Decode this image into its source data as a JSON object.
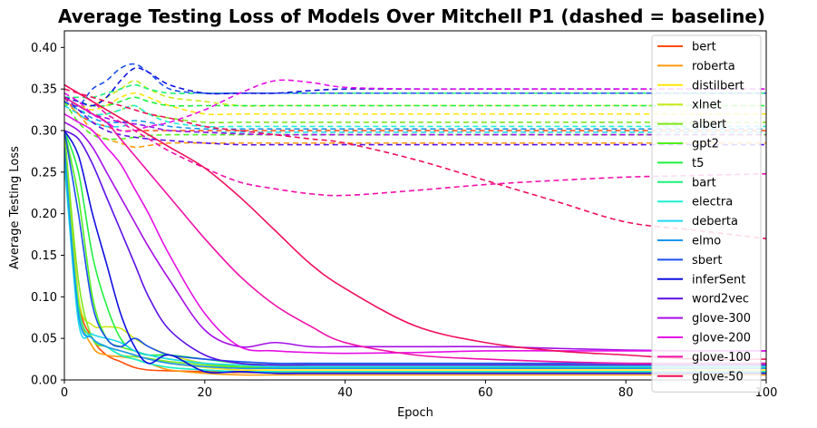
{
  "chart_data": {
    "type": "line",
    "title": "Average Testing Loss of Models Over Mitchell P1 (dashed = baseline)",
    "xlabel": "Epoch",
    "ylabel": "Average Testing Loss",
    "xlim": [
      0,
      100
    ],
    "ylim": [
      0,
      0.42
    ],
    "xticks": [
      0,
      20,
      40,
      60,
      80,
      100
    ],
    "yticks": [
      0.0,
      0.05,
      0.1,
      0.15,
      0.2,
      0.25,
      0.3,
      0.35,
      0.4
    ],
    "xtick_labels": [
      "0",
      "20",
      "40",
      "60",
      "80",
      "100"
    ],
    "ytick_labels": [
      "0.00",
      "0.05",
      "0.10",
      "0.15",
      "0.20",
      "0.25",
      "0.30",
      "0.35",
      "0.40"
    ],
    "legend_position": "upper-right",
    "x": [
      0,
      2,
      4,
      6,
      8,
      10,
      12,
      15,
      20,
      25,
      30,
      35,
      40,
      50,
      60,
      70,
      80,
      90,
      100
    ],
    "series": [
      {
        "name": "bert",
        "color": "#ff4d0d",
        "style": "solid",
        "values": [
          0.3,
          0.1,
          0.05,
          0.03,
          0.022,
          0.015,
          0.012,
          0.011,
          0.01,
          0.009,
          0.009,
          0.009,
          0.009,
          0.009,
          0.009,
          0.009,
          0.009,
          0.009,
          0.009
        ]
      },
      {
        "name": "roberta",
        "color": "#ff9a0d",
        "style": "solid",
        "values": [
          0.26,
          0.09,
          0.04,
          0.03,
          0.028,
          0.025,
          0.02,
          0.012,
          0.008,
          0.006,
          0.006,
          0.006,
          0.006,
          0.006,
          0.006,
          0.006,
          0.006,
          0.006,
          0.006
        ]
      },
      {
        "name": "distilbert",
        "color": "#ffe50d",
        "style": "solid",
        "values": [
          0.27,
          0.08,
          0.05,
          0.04,
          0.035,
          0.03,
          0.025,
          0.02,
          0.015,
          0.012,
          0.012,
          0.012,
          0.012,
          0.012,
          0.012,
          0.012,
          0.012,
          0.012,
          0.012
        ]
      },
      {
        "name": "xlnet",
        "color": "#cbe81a",
        "style": "solid",
        "values": [
          0.29,
          0.1,
          0.066,
          0.064,
          0.062,
          0.05,
          0.04,
          0.03,
          0.02,
          0.016,
          0.016,
          0.016,
          0.016,
          0.016,
          0.016,
          0.016,
          0.016,
          0.016,
          0.016
        ]
      },
      {
        "name": "albert",
        "color": "#7ee61c",
        "style": "solid",
        "values": [
          0.3,
          0.12,
          0.05,
          0.04,
          0.03,
          0.028,
          0.026,
          0.022,
          0.018,
          0.015,
          0.015,
          0.015,
          0.015,
          0.015,
          0.015,
          0.015,
          0.015,
          0.015,
          0.015
        ]
      },
      {
        "name": "gpt2",
        "color": "#4ff01c",
        "style": "solid",
        "values": [
          0.3,
          0.22,
          0.1,
          0.05,
          0.04,
          0.035,
          0.03,
          0.025,
          0.02,
          0.016,
          0.015,
          0.015,
          0.015,
          0.015,
          0.015,
          0.015,
          0.015,
          0.015,
          0.015
        ]
      },
      {
        "name": "t5",
        "color": "#1ff03f",
        "style": "solid",
        "values": [
          0.3,
          0.25,
          0.15,
          0.09,
          0.05,
          0.035,
          0.03,
          0.03,
          0.025,
          0.02,
          0.018,
          0.018,
          0.018,
          0.018,
          0.018,
          0.018,
          0.018,
          0.018,
          0.018
        ]
      },
      {
        "name": "bart",
        "color": "#1cf07a",
        "style": "solid",
        "values": [
          0.28,
          0.09,
          0.05,
          0.04,
          0.03,
          0.025,
          0.02,
          0.015,
          0.012,
          0.01,
          0.01,
          0.01,
          0.01,
          0.01,
          0.01,
          0.01,
          0.01,
          0.01,
          0.01
        ]
      },
      {
        "name": "electra",
        "color": "#1cf0cf",
        "style": "solid",
        "values": [
          0.26,
          0.08,
          0.05,
          0.04,
          0.03,
          0.025,
          0.02,
          0.015,
          0.012,
          0.01,
          0.01,
          0.01,
          0.01,
          0.01,
          0.01,
          0.01,
          0.01,
          0.01,
          0.01
        ]
      },
      {
        "name": "deberta",
        "color": "#1cd9f0",
        "style": "solid",
        "values": [
          0.27,
          0.07,
          0.055,
          0.05,
          0.045,
          0.035,
          0.03,
          0.025,
          0.02,
          0.018,
          0.016,
          0.016,
          0.016,
          0.016,
          0.016,
          0.016,
          0.016,
          0.016,
          0.016
        ]
      },
      {
        "name": "elmo",
        "color": "#1c96f0",
        "style": "solid",
        "values": [
          0.28,
          0.08,
          0.05,
          0.04,
          0.035,
          0.03,
          0.025,
          0.02,
          0.016,
          0.014,
          0.014,
          0.014,
          0.014,
          0.014,
          0.014,
          0.014,
          0.014,
          0.014,
          0.014
        ]
      },
      {
        "name": "sbert",
        "color": "#1c4ff0",
        "style": "solid",
        "values": [
          0.3,
          0.2,
          0.09,
          0.05,
          0.04,
          0.05,
          0.04,
          0.03,
          0.025,
          0.022,
          0.02,
          0.02,
          0.02,
          0.02,
          0.02,
          0.02,
          0.02,
          0.02,
          0.02
        ]
      },
      {
        "name": "inferSent",
        "color": "#0f0fe0",
        "style": "solid",
        "values": [
          0.3,
          0.27,
          0.2,
          0.14,
          0.08,
          0.04,
          0.02,
          0.03,
          0.01,
          0.01,
          0.008,
          0.008,
          0.008,
          0.008,
          0.008,
          0.008,
          0.008,
          0.008,
          0.008
        ]
      },
      {
        "name": "word2vec",
        "color": "#5a0fe6",
        "style": "solid",
        "values": [
          0.3,
          0.29,
          0.26,
          0.22,
          0.18,
          0.14,
          0.1,
          0.06,
          0.03,
          0.02,
          0.018,
          0.018,
          0.018,
          0.018,
          0.018,
          0.018,
          0.018,
          0.018,
          0.018
        ]
      },
      {
        "name": "glove-300",
        "color": "#a50fe6",
        "style": "solid",
        "values": [
          0.31,
          0.3,
          0.28,
          0.25,
          0.22,
          0.19,
          0.16,
          0.12,
          0.06,
          0.04,
          0.045,
          0.04,
          0.04,
          0.04,
          0.04,
          0.038,
          0.036,
          0.035,
          0.035
        ]
      },
      {
        "name": "glove-200",
        "color": "#e60fe6",
        "style": "solid",
        "values": [
          0.32,
          0.31,
          0.3,
          0.28,
          0.26,
          0.23,
          0.2,
          0.15,
          0.08,
          0.04,
          0.035,
          0.033,
          0.032,
          0.033,
          0.035,
          0.035,
          0.035,
          0.035,
          0.035
        ]
      },
      {
        "name": "glove-100",
        "color": "#f00fa8",
        "style": "solid",
        "values": [
          0.34,
          0.33,
          0.32,
          0.31,
          0.29,
          0.27,
          0.25,
          0.22,
          0.17,
          0.125,
          0.09,
          0.065,
          0.045,
          0.03,
          0.025,
          0.022,
          0.02,
          0.02,
          0.02
        ]
      },
      {
        "name": "glove-50",
        "color": "#f00f5a",
        "style": "solid",
        "values": [
          0.355,
          0.345,
          0.335,
          0.325,
          0.315,
          0.305,
          0.295,
          0.28,
          0.255,
          0.22,
          0.18,
          0.14,
          0.11,
          0.065,
          0.045,
          0.035,
          0.03,
          0.025,
          0.025
        ]
      },
      {
        "name": "",
        "color": "#ff4d0d",
        "style": "dashed",
        "values": [
          0.34,
          0.32,
          0.31,
          0.305,
          0.3,
          0.3,
          0.3,
          0.3,
          0.3,
          0.3,
          0.3,
          0.3,
          0.3,
          0.3,
          0.3,
          0.3,
          0.3,
          0.3,
          0.3
        ]
      },
      {
        "name": "",
        "color": "#ff9a0d",
        "style": "dashed",
        "values": [
          0.335,
          0.32,
          0.3,
          0.29,
          0.285,
          0.28,
          0.282,
          0.285,
          0.285,
          0.285,
          0.285,
          0.285,
          0.285,
          0.285,
          0.285,
          0.285,
          0.285,
          0.285,
          0.285
        ]
      },
      {
        "name": "",
        "color": "#ffe50d",
        "style": "dashed",
        "values": [
          0.34,
          0.33,
          0.325,
          0.33,
          0.34,
          0.345,
          0.34,
          0.33,
          0.32,
          0.32,
          0.32,
          0.32,
          0.32,
          0.32,
          0.32,
          0.32,
          0.32,
          0.32,
          0.32
        ]
      },
      {
        "name": "",
        "color": "#cbe81a",
        "style": "dashed",
        "values": [
          0.34,
          0.33,
          0.33,
          0.34,
          0.35,
          0.36,
          0.35,
          0.34,
          0.335,
          0.33,
          0.33,
          0.33,
          0.33,
          0.33,
          0.33,
          0.33,
          0.33,
          0.33,
          0.33
        ]
      },
      {
        "name": "",
        "color": "#7ee61c",
        "style": "dashed",
        "values": [
          0.34,
          0.33,
          0.32,
          0.32,
          0.325,
          0.33,
          0.32,
          0.315,
          0.31,
          0.31,
          0.31,
          0.31,
          0.31,
          0.31,
          0.31,
          0.31,
          0.31,
          0.31,
          0.31
        ]
      },
      {
        "name": "",
        "color": "#4ff01c",
        "style": "dashed",
        "values": [
          0.335,
          0.31,
          0.295,
          0.29,
          0.29,
          0.292,
          0.294,
          0.295,
          0.295,
          0.295,
          0.295,
          0.295,
          0.295,
          0.295,
          0.295,
          0.295,
          0.295,
          0.295,
          0.295
        ]
      },
      {
        "name": "",
        "color": "#1ff03f",
        "style": "dashed",
        "values": [
          0.34,
          0.335,
          0.33,
          0.33,
          0.335,
          0.34,
          0.335,
          0.33,
          0.33,
          0.33,
          0.33,
          0.33,
          0.33,
          0.33,
          0.33,
          0.33,
          0.33,
          0.33,
          0.33
        ]
      },
      {
        "name": "",
        "color": "#1cf07a",
        "style": "dashed",
        "values": [
          0.34,
          0.34,
          0.34,
          0.345,
          0.35,
          0.355,
          0.35,
          0.345,
          0.345,
          0.345,
          0.345,
          0.345,
          0.345,
          0.345,
          0.345,
          0.345,
          0.345,
          0.345,
          0.345
        ]
      },
      {
        "name": "",
        "color": "#1cf0cf",
        "style": "dashed",
        "values": [
          0.335,
          0.325,
          0.32,
          0.32,
          0.325,
          0.33,
          0.32,
          0.31,
          0.305,
          0.305,
          0.305,
          0.305,
          0.305,
          0.305,
          0.305,
          0.305,
          0.305,
          0.305,
          0.305
        ]
      },
      {
        "name": "",
        "color": "#1cd9f0",
        "style": "dashed",
        "values": [
          0.33,
          0.32,
          0.31,
          0.305,
          0.305,
          0.308,
          0.305,
          0.3,
          0.298,
          0.298,
          0.298,
          0.298,
          0.298,
          0.298,
          0.298,
          0.298,
          0.298,
          0.298,
          0.298
        ]
      },
      {
        "name": "",
        "color": "#1c96f0",
        "style": "dashed",
        "values": [
          0.335,
          0.325,
          0.315,
          0.31,
          0.31,
          0.312,
          0.31,
          0.305,
          0.302,
          0.302,
          0.302,
          0.302,
          0.302,
          0.302,
          0.302,
          0.302,
          0.302,
          0.302,
          0.302
        ]
      },
      {
        "name": "",
        "color": "#1c4ff0",
        "style": "dashed",
        "values": [
          0.335,
          0.33,
          0.35,
          0.36,
          0.375,
          0.38,
          0.37,
          0.35,
          0.345,
          0.345,
          0.345,
          0.345,
          0.345,
          0.345,
          0.345,
          0.345,
          0.345,
          0.345,
          0.345
        ]
      },
      {
        "name": "",
        "color": "#0f0fe0",
        "style": "dashed",
        "values": [
          0.34,
          0.335,
          0.33,
          0.34,
          0.36,
          0.375,
          0.37,
          0.355,
          0.345,
          0.345,
          0.345,
          0.348,
          0.35,
          0.35,
          0.35,
          0.35,
          0.35,
          0.35,
          0.35
        ]
      },
      {
        "name": "",
        "color": "#5a0fe6",
        "style": "dashed",
        "values": [
          0.34,
          0.325,
          0.31,
          0.3,
          0.295,
          0.292,
          0.29,
          0.288,
          0.285,
          0.283,
          0.283,
          0.283,
          0.283,
          0.283,
          0.283,
          0.283,
          0.283,
          0.283,
          0.283
        ]
      },
      {
        "name": "",
        "color": "#a50fe6",
        "style": "dashed",
        "values": [
          0.34,
          0.33,
          0.32,
          0.315,
          0.31,
          0.308,
          0.305,
          0.3,
          0.298,
          0.296,
          0.295,
          0.295,
          0.295,
          0.295,
          0.295,
          0.295,
          0.295,
          0.295,
          0.295
        ]
      },
      {
        "name": "",
        "color": "#e60fe6",
        "style": "dashed",
        "values": [
          0.345,
          0.335,
          0.32,
          0.31,
          0.3,
          0.3,
          0.305,
          0.31,
          0.325,
          0.345,
          0.36,
          0.358,
          0.352,
          0.35,
          0.35,
          0.35,
          0.35,
          0.35,
          0.35
        ]
      },
      {
        "name": "",
        "color": "#f00fa8",
        "style": "dashed",
        "values": [
          0.355,
          0.345,
          0.335,
          0.32,
          0.31,
          0.3,
          0.29,
          0.275,
          0.255,
          0.238,
          0.23,
          0.224,
          0.222,
          0.228,
          0.235,
          0.24,
          0.244,
          0.246,
          0.248
        ]
      },
      {
        "name": "",
        "color": "#f00f5a",
        "style": "dashed",
        "values": [
          0.35,
          0.345,
          0.34,
          0.335,
          0.33,
          0.325,
          0.32,
          0.315,
          0.305,
          0.3,
          0.295,
          0.29,
          0.285,
          0.265,
          0.24,
          0.215,
          0.19,
          0.18,
          0.17
        ]
      }
    ]
  }
}
